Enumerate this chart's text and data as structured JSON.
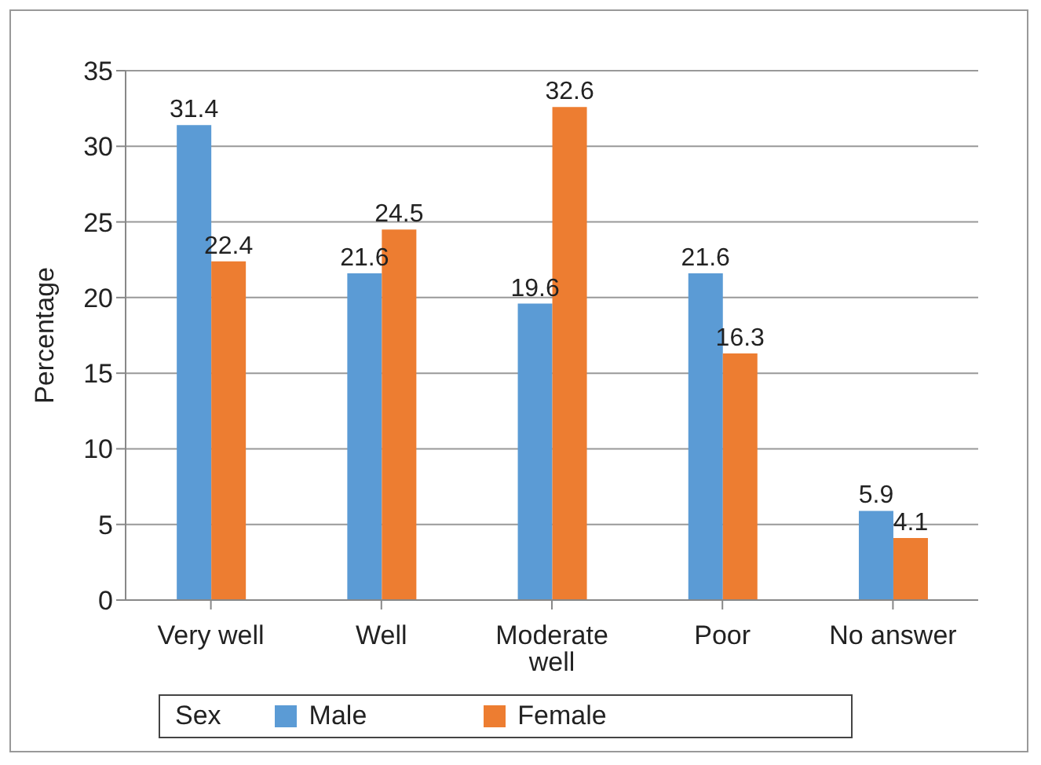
{
  "chart_data": {
    "type": "bar",
    "ylabel": "Percentage",
    "categories": [
      "Very well",
      "Well",
      "Moderate well",
      "Poor",
      "No answer"
    ],
    "series": [
      {
        "name": "Male",
        "color": "#5b9bd5",
        "values": [
          31.4,
          21.6,
          19.6,
          21.6,
          5.9
        ]
      },
      {
        "name": "Female",
        "color": "#ed7d31",
        "values": [
          22.4,
          24.5,
          32.6,
          16.3,
          4.1
        ]
      }
    ],
    "ylim": [
      0,
      35
    ],
    "yticks": [
      0,
      5,
      10,
      15,
      20,
      25,
      30,
      35
    ],
    "grid": "y",
    "data_labels": true,
    "legend": "bottom",
    "legend_title": "Sex"
  }
}
